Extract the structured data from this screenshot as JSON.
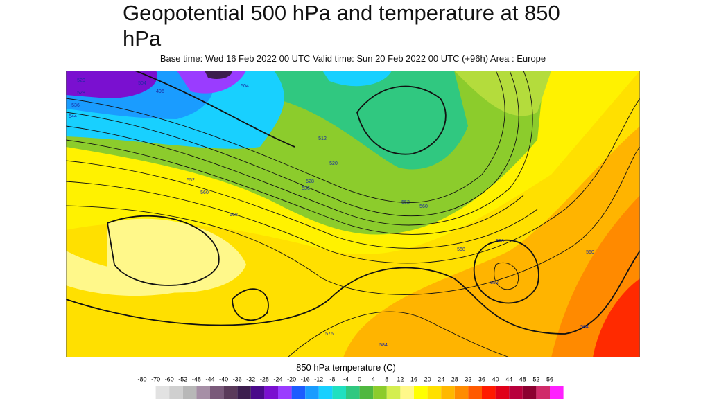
{
  "header": {
    "title": "Geopotential 500 hPa and temperature at 850 hPa",
    "subtitle": "Base time: Wed 16 Feb 2022 00 UTC Valid time: Sun 20 Feb 2022 00 UTC (+96h) Area : Europe"
  },
  "map": {
    "contour_labels": [
      "520",
      "528",
      "536",
      "544",
      "504",
      "496",
      "504",
      "512",
      "520",
      "528",
      "536",
      "552",
      "560",
      "568",
      "552",
      "560",
      "552",
      "568",
      "576",
      "584",
      "560",
      "560",
      "584"
    ]
  },
  "legend": {
    "title": "850 hPa temperature (C)",
    "labels": [
      "-80",
      "-70",
      "-60",
      "-52",
      "-48",
      "-44",
      "-40",
      "-36",
      "-32",
      "-28",
      "-24",
      "-20",
      "-16",
      "-12",
      "-8",
      "-4",
      "0",
      "4",
      "8",
      "12",
      "16",
      "20",
      "24",
      "28",
      "32",
      "36",
      "40",
      "44",
      "48",
      "52",
      "56"
    ],
    "colors": [
      "#e2e2e2",
      "#cfcfcf",
      "#b8b8b8",
      "#a68fa6",
      "#7a5a7a",
      "#5a3a5a",
      "#3c1e4e",
      "#4a0a8a",
      "#7a10d0",
      "#9a3cff",
      "#1c5cff",
      "#1a9cff",
      "#18d0ff",
      "#20e0c0",
      "#30c880",
      "#50b840",
      "#8ccc2c",
      "#d4ee50",
      "#fff88a",
      "#ffff00",
      "#ffe000",
      "#ffb800",
      "#ff8c00",
      "#ff5a00",
      "#ff1a00",
      "#e0001a",
      "#b8003c",
      "#8c0030",
      "#d02a6a",
      "#ff20ff"
    ]
  }
}
